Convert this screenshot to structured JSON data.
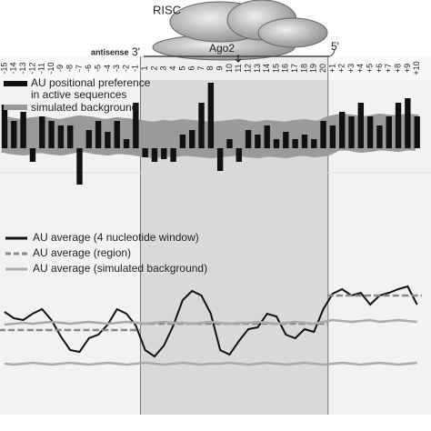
{
  "diagram": {
    "label": "RISC",
    "protein": "Ago2",
    "strand": "antisense",
    "end3": "3'",
    "end5": "5'"
  },
  "chart_data": [
    {
      "type": "bar",
      "categories": [
        "-15",
        "-14",
        "-13",
        "-12",
        "-11",
        "-10",
        "-9",
        "-8",
        "-7",
        "-6",
        "-5",
        "-4",
        "-3",
        "-2",
        "-1",
        "1",
        "2",
        "3",
        "4",
        "5",
        "6",
        "7",
        "8",
        "9",
        "10",
        "11",
        "12",
        "13",
        "14",
        "15",
        "16",
        "17",
        "18",
        "19",
        "20",
        "+1",
        "+2",
        "+3",
        "+4",
        "+5",
        "+6",
        "+7",
        "+8",
        "+9",
        "+10"
      ],
      "series": [
        {
          "name": [
            "AU positional preference",
            "in active sequences"
          ],
          "color": "#111111",
          "values": [
            4.8,
            3.0,
            4.0,
            -1.5,
            3.5,
            3.0,
            2.5,
            2.5,
            -4.0,
            2.0,
            3.0,
            1.8,
            3.0,
            1.0,
            5.0,
            -1.0,
            -1.5,
            -1.2,
            -1.5,
            1.5,
            2.0,
            5.0,
            7.2,
            -2.5,
            1.0,
            -1.5,
            2.0,
            1.5,
            2.5,
            1.0,
            1.8,
            1.0,
            1.5,
            1.0,
            3.0,
            2.5,
            4.0,
            3.5,
            5.0,
            3.5,
            2.5,
            3.5,
            5.0,
            5.5,
            3.5
          ]
        },
        {
          "name": "simulated background",
          "color": "#9a9a9a",
          "kind": "band",
          "values": [
            1.5,
            1.3,
            1.2,
            1.4,
            1.5,
            1.3,
            1.2,
            1.4,
            1.6,
            1.5,
            1.3,
            1.2,
            1.4,
            1.3,
            1.2,
            1.0,
            0.9,
            1.1,
            1.0,
            1.2,
            1.1,
            1.0,
            0.9,
            1.0,
            1.1,
            1.2,
            1.0,
            0.9,
            1.1,
            1.0,
            0.9,
            1.1,
            1.2,
            1.0,
            1.1,
            1.6,
            1.8,
            1.7,
            1.5,
            1.6,
            1.8,
            1.7,
            1.6,
            1.8,
            1.7
          ]
        }
      ]
    },
    {
      "type": "line",
      "series": [
        {
          "name": "AU average (4 nucleotide window)",
          "color": "#111111",
          "values": [
            7.7,
            7.0,
            6.8,
            7.5,
            8.0,
            6.8,
            5.0,
            3.5,
            3.3,
            4.8,
            5.2,
            6.3,
            8.0,
            7.5,
            6.2,
            3.5,
            2.8,
            4.0,
            6.2,
            9.0,
            10.0,
            9.5,
            7.5,
            3.5,
            3.0,
            4.5,
            5.8,
            6.0,
            7.5,
            7.2,
            5.2,
            4.8,
            5.8,
            5.5,
            8.0,
            9.7,
            10.2,
            9.5,
            9.8,
            8.5,
            9.5,
            9.8,
            10.2,
            10.5,
            8.5
          ]
        },
        {
          "name": "AU average (region)",
          "color": "#888888",
          "dash": true,
          "values": [
            5.7,
            5.7,
            5.7,
            5.7,
            5.7,
            5.7,
            5.7,
            5.7,
            5.7,
            5.7,
            5.7,
            5.7,
            5.7,
            5.7,
            5.7,
            6.4,
            6.4,
            6.4,
            6.4,
            6.4,
            6.4,
            6.4,
            6.4,
            6.4,
            6.4,
            6.4,
            6.4,
            6.4,
            6.4,
            6.4,
            6.4,
            6.4,
            6.4,
            6.4,
            6.4,
            9.5,
            9.5,
            9.5,
            9.5,
            9.5,
            9.5,
            9.5,
            9.5,
            9.5,
            9.5
          ]
        },
        {
          "name": "AU average (simulated background)",
          "color": "#aaaaaa",
          "values": [
            6.3,
            6.4,
            6.5,
            6.4,
            6.5,
            6.6,
            6.5,
            6.4,
            6.5,
            6.6,
            6.5,
            6.4,
            6.5,
            6.6,
            6.5,
            6.4,
            6.5,
            6.6,
            6.5,
            6.5,
            6.4,
            6.5,
            6.6,
            6.5,
            6.4,
            6.5,
            6.5,
            6.6,
            6.5,
            6.4,
            6.5,
            6.6,
            6.5,
            6.4,
            6.6,
            6.8,
            6.7,
            6.6,
            6.7,
            6.8,
            6.6,
            6.7,
            6.8,
            6.7,
            6.6
          ]
        },
        {
          "color": "#aaaaaa",
          "values": [
            2.0,
            1.9,
            2.0,
            2.1,
            2.0,
            1.9,
            2.0,
            2.1,
            2.0,
            1.9,
            2.0,
            2.1,
            2.0,
            1.9,
            2.0,
            2.1,
            2.0,
            1.9,
            2.0,
            2.1,
            2.0,
            1.9,
            2.0,
            2.0,
            2.1,
            2.0,
            1.9,
            2.0,
            2.1,
            2.0,
            1.9,
            2.0,
            2.1,
            2.0,
            1.9,
            2.0,
            2.1,
            2.0,
            1.9,
            2.0,
            2.1,
            2.0,
            1.9,
            2.0,
            2.1
          ]
        }
      ]
    }
  ]
}
